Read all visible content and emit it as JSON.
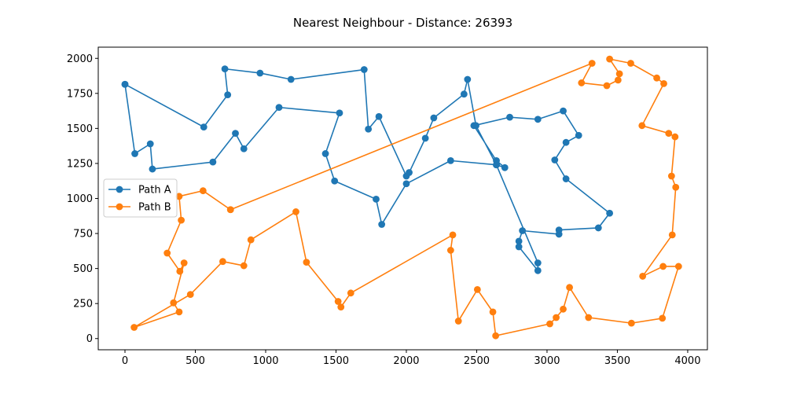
{
  "chart_data": {
    "type": "line",
    "title": "Nearest Neighbour - Distance: 26393",
    "xlabel": "",
    "ylabel": "",
    "xlim": [
      -190,
      4140
    ],
    "ylim": [
      -80,
      2080
    ],
    "xticks": [
      0,
      500,
      1000,
      1500,
      2000,
      2500,
      3000,
      3500,
      4000
    ],
    "yticks": [
      0,
      250,
      500,
      750,
      1000,
      1250,
      1500,
      1750,
      2000
    ],
    "grid": false,
    "legend_position": "center-left",
    "series": [
      {
        "name": "Path A",
        "color": "#1f77b4",
        "marker": "circle",
        "points": [
          [
            0,
            1815
          ],
          [
            70,
            1320
          ],
          [
            180,
            1390
          ],
          [
            195,
            1210
          ],
          [
            625,
            1260
          ],
          [
            785,
            1465
          ],
          [
            845,
            1355
          ],
          [
            1095,
            1650
          ],
          [
            1525,
            1610
          ],
          [
            1425,
            1320
          ],
          [
            1490,
            1125
          ],
          [
            1785,
            995
          ],
          [
            1825,
            815
          ],
          [
            2000,
            1105
          ],
          [
            2315,
            1270
          ],
          [
            2640,
            1240
          ],
          [
            2700,
            1220
          ],
          [
            2640,
            1270
          ],
          [
            2480,
            1520
          ],
          [
            2735,
            1580
          ],
          [
            2935,
            1565
          ],
          [
            3115,
            1625
          ],
          [
            3225,
            1450
          ],
          [
            3135,
            1400
          ],
          [
            3055,
            1275
          ],
          [
            3135,
            1140
          ],
          [
            3445,
            895
          ],
          [
            3365,
            790
          ],
          [
            3085,
            775
          ],
          [
            3085,
            745
          ],
          [
            2825,
            770
          ],
          [
            2800,
            695
          ],
          [
            2800,
            655
          ],
          [
            2935,
            485
          ],
          [
            2935,
            540
          ],
          [
            2640,
            1240
          ],
          [
            2495,
            1520
          ],
          [
            2435,
            1850
          ],
          [
            2410,
            1745
          ],
          [
            2195,
            1575
          ],
          [
            2135,
            1430
          ],
          [
            2020,
            1185
          ],
          [
            2000,
            1160
          ],
          [
            1805,
            1585
          ],
          [
            1730,
            1495
          ],
          [
            1700,
            1920
          ],
          [
            1180,
            1850
          ],
          [
            960,
            1895
          ],
          [
            710,
            1925
          ],
          [
            730,
            1740
          ],
          [
            560,
            1510
          ],
          [
            0,
            1815
          ]
        ]
      },
      {
        "name": "Path B",
        "color": "#ff7f0e",
        "marker": "circle",
        "points": [
          [
            750,
            920
          ],
          [
            555,
            1055
          ],
          [
            385,
            1015
          ],
          [
            400,
            845
          ],
          [
            300,
            610
          ],
          [
            390,
            480
          ],
          [
            420,
            540
          ],
          [
            345,
            255
          ],
          [
            385,
            190
          ],
          [
            65,
            80
          ],
          [
            465,
            315
          ],
          [
            695,
            550
          ],
          [
            845,
            520
          ],
          [
            895,
            705
          ],
          [
            1215,
            905
          ],
          [
            1290,
            545
          ],
          [
            1515,
            265
          ],
          [
            1535,
            225
          ],
          [
            1605,
            325
          ],
          [
            2330,
            740
          ],
          [
            2315,
            630
          ],
          [
            2370,
            125
          ],
          [
            2505,
            350
          ],
          [
            2615,
            190
          ],
          [
            2635,
            20
          ],
          [
            3020,
            105
          ],
          [
            3065,
            150
          ],
          [
            3115,
            210
          ],
          [
            3160,
            365
          ],
          [
            3295,
            150
          ],
          [
            3600,
            110
          ],
          [
            3820,
            145
          ],
          [
            3935,
            515
          ],
          [
            3825,
            515
          ],
          [
            3680,
            445
          ],
          [
            3890,
            740
          ],
          [
            3915,
            1080
          ],
          [
            3885,
            1160
          ],
          [
            3910,
            1440
          ],
          [
            3865,
            1465
          ],
          [
            3675,
            1520
          ],
          [
            3830,
            1820
          ],
          [
            3780,
            1860
          ],
          [
            3595,
            1965
          ],
          [
            3445,
            1995
          ],
          [
            3515,
            1890
          ],
          [
            3505,
            1845
          ],
          [
            3425,
            1805
          ],
          [
            3245,
            1825
          ],
          [
            3320,
            1965
          ],
          [
            750,
            920
          ]
        ]
      }
    ]
  }
}
